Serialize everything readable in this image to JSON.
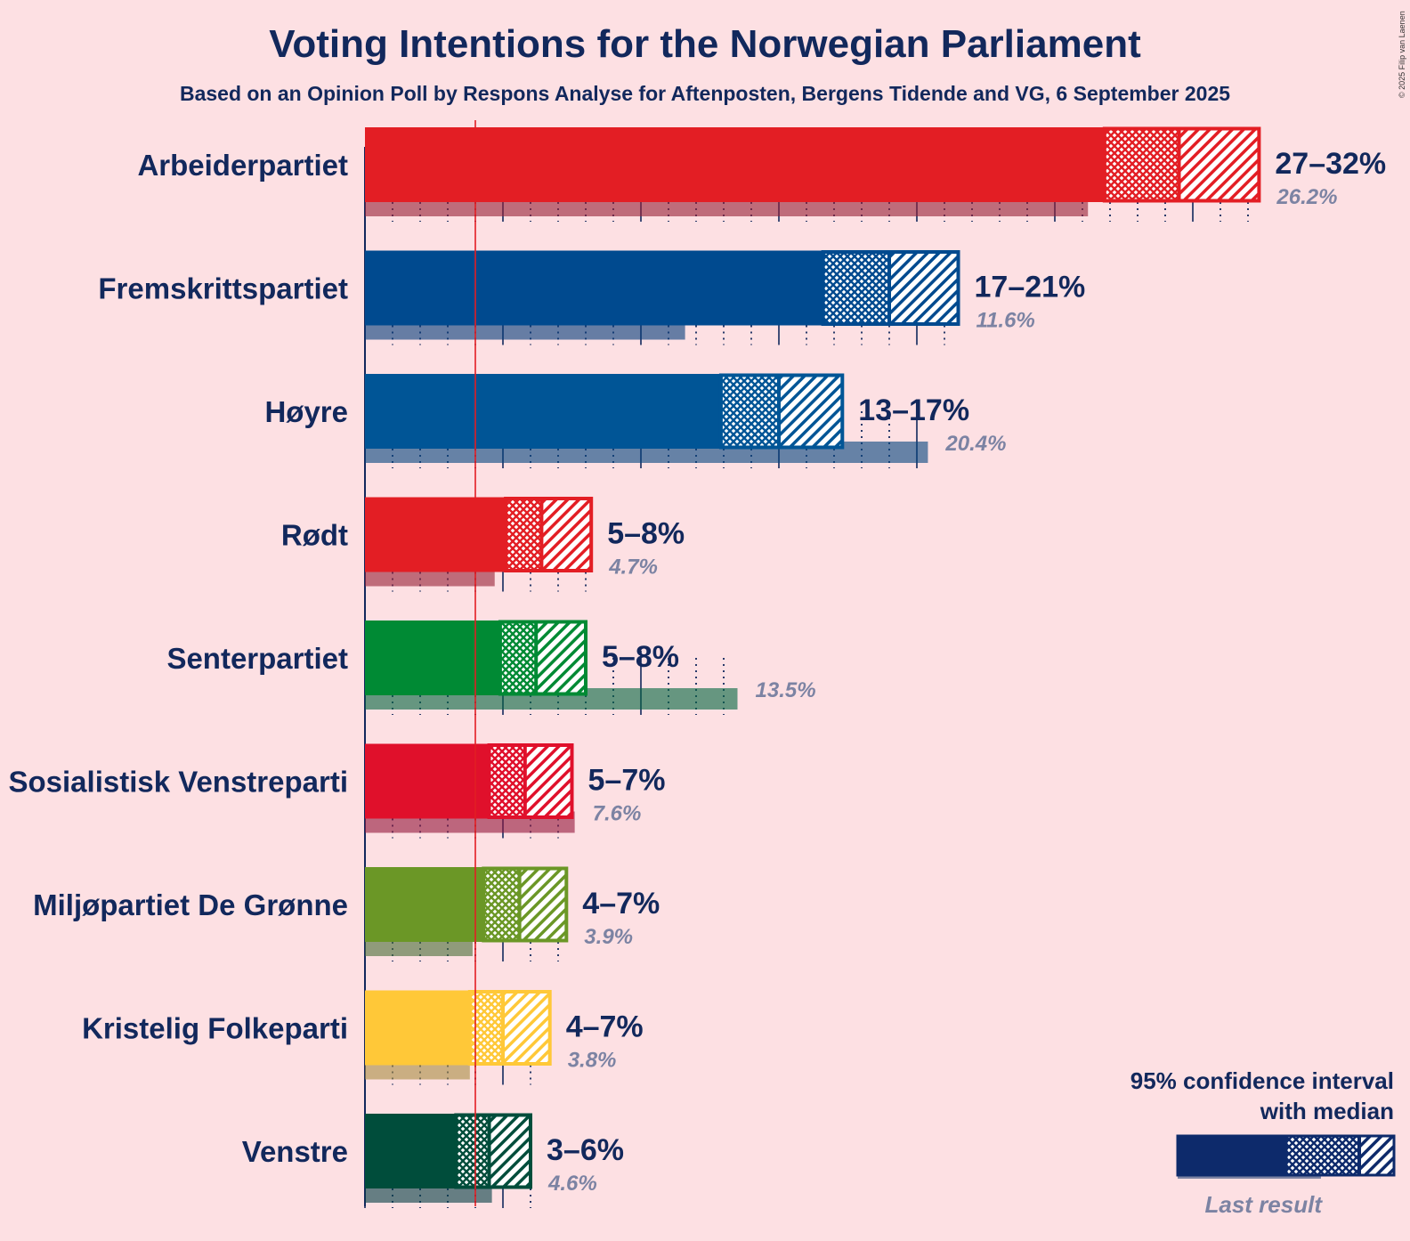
{
  "title": "Voting Intentions for the Norwegian Parliament",
  "subtitle": "Based on an Opinion Poll by Respons Analyse for Aftenposten, Bergens Tidende and VG, 6 September 2025",
  "credit": "© 2025 Filip van Laenen",
  "legend": {
    "line1": "95% confidence interval",
    "line2": "with median",
    "last_result": "Last result"
  },
  "colors": {
    "background": "#fde0e3",
    "text": "#12285c",
    "last_result_text": "#7c83a3",
    "threshold_line": "#e31e24",
    "legend_bar": "#0d2a6b"
  },
  "chart_data": {
    "type": "bar",
    "orientation": "horizontal",
    "unit": "%",
    "x_range": [
      0,
      32.5
    ],
    "gridlines_major": [
      0,
      5,
      10,
      15,
      20,
      25,
      30
    ],
    "threshold": 4,
    "parties": [
      {
        "name": "Arbeiderpartiet",
        "ci_low": 26.8,
        "median": 29.5,
        "ci_high": 32.4,
        "label": "27–32%",
        "last_result": 26.2,
        "last_label": "26.2%",
        "color": "#e31e24"
      },
      {
        "name": "Fremskrittspartiet",
        "ci_low": 16.6,
        "median": 19.0,
        "ci_high": 21.5,
        "label": "17–21%",
        "last_result": 11.6,
        "last_label": "11.6%",
        "color": "#004a8f"
      },
      {
        "name": "Høyre",
        "ci_low": 12.9,
        "median": 15.0,
        "ci_high": 17.3,
        "label": "13–17%",
        "last_result": 20.4,
        "last_label": "20.4%",
        "color": "#005596"
      },
      {
        "name": "Rødt",
        "ci_low": 5.1,
        "median": 6.4,
        "ci_high": 8.2,
        "label": "5–8%",
        "last_result": 4.7,
        "last_label": "4.7%",
        "color": "#e31e24"
      },
      {
        "name": "Senterpartiet",
        "ci_low": 4.9,
        "median": 6.2,
        "ci_high": 8.0,
        "label": "5–8%",
        "last_result": 13.5,
        "last_label": "13.5%",
        "color": "#008a34"
      },
      {
        "name": "Sosialistisk Venstreparti",
        "ci_low": 4.5,
        "median": 5.8,
        "ci_high": 7.5,
        "label": "5–7%",
        "last_result": 7.6,
        "last_label": "7.6%",
        "color": "#e0102b"
      },
      {
        "name": "Miljøpartiet De Grønne",
        "ci_low": 4.3,
        "median": 5.6,
        "ci_high": 7.3,
        "label": "4–7%",
        "last_result": 3.9,
        "last_label": "3.9%",
        "color": "#6b9726"
      },
      {
        "name": "Kristelig Folkeparti",
        "ci_low": 3.8,
        "median": 5.0,
        "ci_high": 6.7,
        "label": "4–7%",
        "last_result": 3.8,
        "last_label": "3.8%",
        "color": "#ffc838"
      },
      {
        "name": "Venstre",
        "ci_low": 3.3,
        "median": 4.5,
        "ci_high": 6.0,
        "label": "3–6%",
        "last_result": 4.6,
        "last_label": "4.6%",
        "color": "#004d3b"
      }
    ]
  }
}
